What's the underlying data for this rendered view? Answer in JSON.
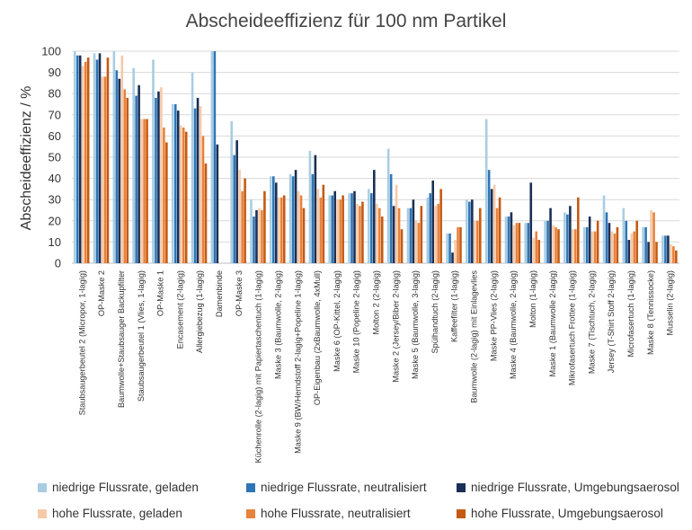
{
  "chart_data": {
    "type": "bar",
    "title": "Abscheideeffizienz für 100 nm Partikel",
    "xlabel": "",
    "ylabel": "Abscheideeffizienz / %",
    "ylim": [
      0,
      100
    ],
    "yticks": [
      0,
      10,
      20,
      30,
      40,
      50,
      60,
      70,
      80,
      90,
      100
    ],
    "grid": true,
    "legend_position": "bottom",
    "categories": [
      "Staubsaugerbeutel 2 (Micropor, 1-lagig)",
      "OP-Maske 2",
      "Baumwolle+Staubsauger Backupfilter",
      "Staubsaugerbeutel 1 (Vlies, 1-lagig)",
      "OP-Maske 1",
      "Encasement (2-lagig)",
      "Allergiebezug (1-lagig)",
      "Damenbinde",
      "OP-Maske 3",
      "Küchenrolle (2-lagig) mit Papiertaschentuch (1-lagig)",
      "Maske 3 (Baumwolle, 2-lagig)",
      "Maske 9 (BW/Hemdstoff 2-lagig+Popeline 1-lagig)",
      "OP-Eigenbau (2xBaumwolle, 4xMull)",
      "Maske 6 (OP-Kittel, 2-lagig)",
      "Maske 10 (Popeline 2-lagig)",
      "Molton 2 (2-lagig)",
      "Maske 2 (Jersey/Biber 2-lagig)",
      "Maske 5 (Baumwolle, 3-lagig)",
      "Spülhandtuch (2-lagig)",
      "Kaffeefilter (1-lagig)",
      "Baumwolle (2-lagig) mit Einlagevlies",
      "Maske PP-Vlies (2-lagig)",
      "Maske 4 (Baumwolle, 2-lagig)",
      "Molton (1-lagig)",
      "Maske 1 (Baumwolle 2-lagig)",
      "Mikrofasertuch Frottee (1-lagig)",
      "Maske 7 (Tischtuch, 2-lagig)",
      "Jersey (T-Shirt Stoff 2-lagig)",
      "Microfasertuch (1-lagig)",
      "Maske 8 (Tennissocke)",
      "Musselin (2-lagig)"
    ],
    "series": [
      {
        "name": "niedrige Flussrate, geladen",
        "color": "#a8cde3",
        "values": [
          100,
          99,
          100,
          92,
          96,
          75,
          90,
          100,
          67,
          30,
          41,
          42,
          53,
          32,
          33,
          35,
          54,
          26,
          31,
          14,
          30,
          68,
          22,
          19,
          20,
          24,
          17,
          32,
          26,
          17,
          13
        ]
      },
      {
        "name": "niedrige Flussrate, neutralisiert",
        "color": "#2e75b6",
        "values": [
          98,
          96,
          91,
          79,
          78,
          75,
          73,
          100,
          51,
          22,
          41,
          41,
          42,
          32,
          33,
          33,
          42,
          26,
          33,
          14,
          29,
          44,
          22,
          19,
          20,
          23,
          17,
          24,
          20,
          17,
          13
        ]
      },
      {
        "name": "niedrige Flussrate, Umgebungsaerosol",
        "color": "#1a2f55",
        "values": [
          98,
          99,
          87,
          84,
          81,
          72,
          78,
          56,
          58,
          25,
          38,
          44,
          51,
          34,
          34,
          44,
          27,
          30,
          39,
          5,
          30,
          35,
          24,
          38,
          26,
          27,
          22,
          19,
          11,
          10,
          13
        ]
      },
      {
        "name": "hohe Flussrate, geladen",
        "color": "#f6c9a8",
        "values": [
          93,
          88,
          98,
          68,
          83,
          65,
          74,
          null,
          44,
          26,
          31,
          34,
          35,
          30,
          28,
          28,
          37,
          20,
          27,
          11,
          20,
          37,
          18,
          12,
          18,
          16,
          15,
          15,
          14,
          25,
          9
        ]
      },
      {
        "name": "hohe Flussrate, neutralisiert",
        "color": "#e8823c",
        "values": [
          95,
          88,
          82,
          68,
          64,
          64,
          60,
          null,
          34,
          25,
          31,
          32,
          31,
          30,
          27,
          26,
          26,
          19,
          28,
          17,
          20,
          26,
          19,
          15,
          17,
          16,
          15,
          14,
          15,
          24,
          8
        ]
      },
      {
        "name": "hohe Flussrate, Umgebungsaerosol",
        "color": "#c55a11",
        "values": [
          97,
          97,
          78,
          68,
          57,
          62,
          47,
          null,
          40,
          34,
          32,
          26,
          37,
          32,
          29,
          22,
          16,
          27,
          35,
          17,
          26,
          31,
          19,
          11,
          16,
          31,
          20,
          17,
          20,
          10,
          6
        ]
      }
    ]
  }
}
